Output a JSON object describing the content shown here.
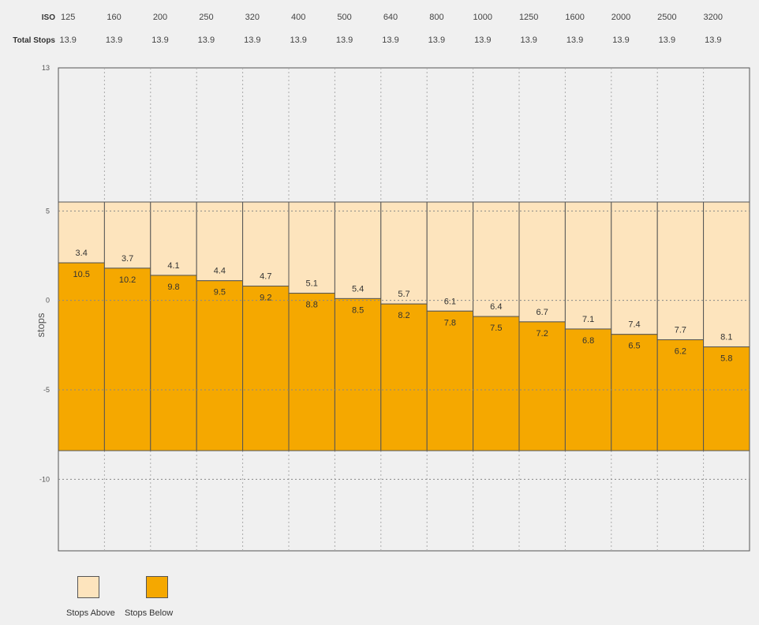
{
  "header": {
    "iso_label": "ISO",
    "total_label": "Total Stops"
  },
  "chart_data": {
    "type": "bar",
    "categories": [
      "125",
      "160",
      "200",
      "250",
      "320",
      "400",
      "500",
      "640",
      "800",
      "1000",
      "1250",
      "1600",
      "2000",
      "2500",
      "3200"
    ],
    "total_stops": [
      "13.9",
      "13.9",
      "13.9",
      "13.9",
      "13.9",
      "13.9",
      "13.9",
      "13.9",
      "13.9",
      "13.9",
      "13.9",
      "13.9",
      "13.9",
      "13.9",
      "13.9"
    ],
    "series": [
      {
        "name": "Stops Above",
        "values": [
          3.4,
          3.7,
          4.1,
          4.4,
          4.7,
          5.1,
          5.4,
          5.7,
          6.1,
          6.4,
          6.7,
          7.1,
          7.4,
          7.7,
          8.1
        ],
        "color": "#fde4bd"
      },
      {
        "name": "Stops Below",
        "values": [
          10.5,
          10.2,
          9.8,
          9.5,
          9.2,
          8.8,
          8.5,
          8.2,
          7.8,
          7.5,
          7.2,
          6.8,
          6.5,
          6.2,
          5.8
        ],
        "color": "#f5a800"
      }
    ],
    "ylabel": "stops",
    "yticks": [
      {
        "value": 13,
        "label": "13"
      },
      {
        "value": 5,
        "label": "5"
      },
      {
        "value": 0,
        "label": "0"
      },
      {
        "value": -5,
        "label": "-5"
      },
      {
        "value": -10,
        "label": "-10"
      }
    ],
    "ylim": [
      -14,
      13
    ],
    "grid": true,
    "legend_position": "bottom-left"
  }
}
